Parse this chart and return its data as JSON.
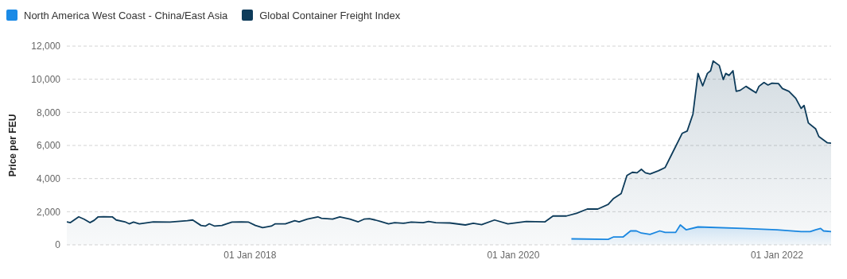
{
  "chart_data": {
    "type": "area",
    "ylabel": "Price per FEU",
    "legend": "top left",
    "grid": "y",
    "xlim": [
      "2016-08-11",
      "2022-05-31"
    ],
    "xticks": [
      {
        "value": "2018-01-01",
        "label": "01 Jan 2018"
      },
      {
        "value": "2020-01-01",
        "label": "01 Jan 2020"
      },
      {
        "value": "2022-01-01",
        "label": "01 Jan 2022"
      }
    ],
    "ylim": [
      0,
      12000
    ],
    "yticks": [
      0,
      {
        "value": 2000,
        "label": "2,000"
      },
      {
        "value": 4000,
        "label": "4,000"
      },
      {
        "value": 6000,
        "label": "6,000"
      },
      {
        "value": 8000,
        "label": "8,000"
      },
      {
        "value": 10000,
        "label": "10,000"
      },
      {
        "value": 12000,
        "label": "12,000"
      }
    ],
    "series": [
      {
        "name": "North America West Coast - China/East Asia",
        "color": "#1a8ae6",
        "x": [
          "2020-06-10",
          "2020-09-20",
          "2020-10-04",
          "2020-10-31",
          "2020-11-21",
          "2020-12-07",
          "2020-12-21",
          "2021-01-14",
          "2021-02-10",
          "2021-02-25",
          "2021-03-26",
          "2021-04-08",
          "2021-04-24",
          "2021-05-27",
          "2021-09-29",
          "2022-01-01",
          "2022-03-09",
          "2022-04-03",
          "2022-04-18",
          "2022-05-02",
          "2022-05-10",
          "2022-05-31"
        ],
        "values": [
          360,
          330,
          470,
          470,
          840,
          840,
          710,
          630,
          840,
          750,
          750,
          1200,
          910,
          1080,
          990,
          910,
          800,
          800,
          910,
          990,
          840,
          800
        ]
      },
      {
        "name": "Global Container Freight Index",
        "color": "#0d3b5a",
        "x": [
          "2016-08-11",
          "2016-08-21",
          "2016-09-13",
          "2016-09-28",
          "2016-10-14",
          "2016-10-26",
          "2016-11-06",
          "2016-11-21",
          "2016-12-15",
          "2016-12-26",
          "2017-01-19",
          "2017-01-31",
          "2017-02-12",
          "2017-02-28",
          "2017-04-08",
          "2017-05-24",
          "2017-07-11",
          "2017-07-26",
          "2017-08-18",
          "2017-08-30",
          "2017-09-10",
          "2017-09-25",
          "2017-10-15",
          "2017-10-28",
          "2017-11-12",
          "2017-12-08",
          "2017-12-28",
          "2018-01-16",
          "2018-02-05",
          "2018-03-01",
          "2018-03-12",
          "2018-04-09",
          "2018-05-05",
          "2018-05-17",
          "2018-06-09",
          "2018-07-08",
          "2018-07-18",
          "2018-08-18",
          "2018-09-07",
          "2018-10-05",
          "2018-10-28",
          "2018-11-13",
          "2018-11-28",
          "2018-12-14",
          "2018-12-29",
          "2019-01-20",
          "2019-02-06",
          "2019-03-02",
          "2019-03-24",
          "2019-04-26",
          "2019-05-11",
          "2019-05-31",
          "2019-07-09",
          "2019-08-21",
          "2019-09-12",
          "2019-10-05",
          "2019-11-10",
          "2019-12-17",
          "2020-02-06",
          "2020-03-29",
          "2020-04-20",
          "2020-05-05",
          "2020-05-27",
          "2020-06-24",
          "2020-07-24",
          "2020-08-22",
          "2020-09-20",
          "2020-10-04",
          "2020-10-26",
          "2020-11-11",
          "2020-11-26",
          "2020-12-09",
          "2020-12-21",
          "2021-01-01",
          "2021-01-14",
          "2021-02-06",
          "2021-02-25",
          "2021-03-15",
          "2021-04-13",
          "2021-04-27",
          "2021-05-13",
          "2021-05-27",
          "2021-06-09",
          "2021-06-22",
          "2021-07-01",
          "2021-07-08",
          "2021-07-25",
          "2021-08-05",
          "2021-08-12",
          "2021-08-21",
          "2021-09-01",
          "2021-09-10",
          "2021-09-21",
          "2021-10-07",
          "2021-10-24",
          "2021-11-04",
          "2021-11-12",
          "2021-11-26",
          "2021-12-07",
          "2021-12-18",
          "2022-01-05",
          "2022-01-16",
          "2022-02-03",
          "2022-02-22",
          "2022-03-09",
          "2022-03-17",
          "2022-03-29",
          "2022-04-18",
          "2022-04-27",
          "2022-05-21",
          "2022-05-31"
        ],
        "values": [
          1390,
          1340,
          1690,
          1550,
          1340,
          1480,
          1690,
          1700,
          1690,
          1500,
          1390,
          1270,
          1370,
          1270,
          1390,
          1370,
          1460,
          1500,
          1170,
          1130,
          1270,
          1130,
          1170,
          1270,
          1370,
          1390,
          1370,
          1170,
          1040,
          1130,
          1270,
          1270,
          1460,
          1390,
          1550,
          1690,
          1600,
          1550,
          1690,
          1550,
          1390,
          1550,
          1580,
          1500,
          1410,
          1270,
          1340,
          1300,
          1370,
          1340,
          1410,
          1340,
          1320,
          1200,
          1300,
          1220,
          1500,
          1270,
          1410,
          1390,
          1740,
          1740,
          1740,
          1900,
          2160,
          2160,
          2440,
          2780,
          3100,
          4190,
          4380,
          4350,
          4560,
          4350,
          4280,
          4470,
          4670,
          5460,
          6730,
          6870,
          7900,
          10350,
          9600,
          10350,
          10510,
          11100,
          10830,
          9980,
          10350,
          10230,
          10510,
          9270,
          9330,
          9570,
          9330,
          9180,
          9570,
          9800,
          9650,
          9760,
          9740,
          9440,
          9270,
          8850,
          8240,
          8420,
          7360,
          7010,
          6540,
          6160,
          6140
        ]
      }
    ]
  }
}
